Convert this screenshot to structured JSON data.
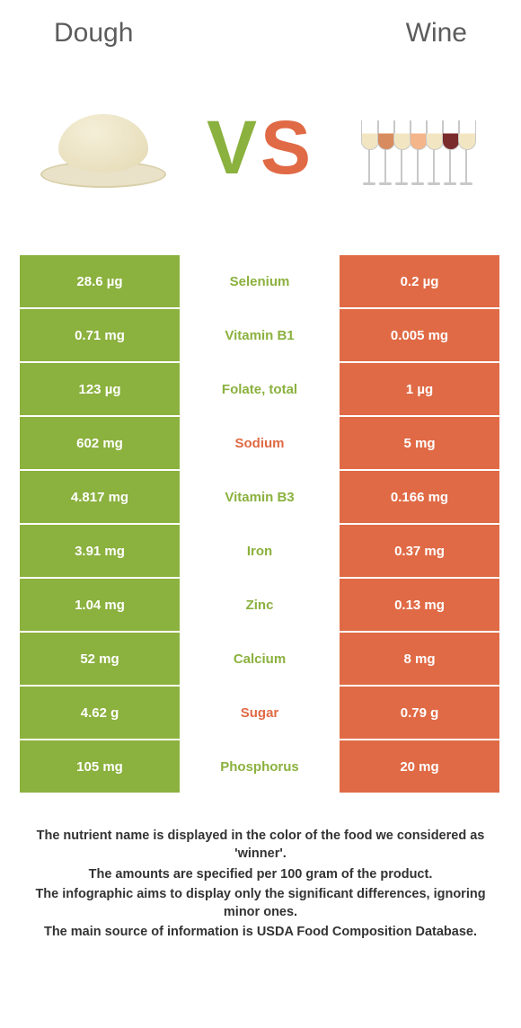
{
  "header": {
    "left": "Dough",
    "right": "Wine"
  },
  "vs": {
    "v": "V",
    "s": "S"
  },
  "colors": {
    "green": "#8bb13e",
    "orange": "#e06a45",
    "background": "#ffffff",
    "text": "#333333",
    "header_text": "#5c5c5c"
  },
  "wine_glass_colors": [
    "#f2e6c2",
    "#d88b5e",
    "#f2e6c2",
    "#f4b58a",
    "#f2e6c2",
    "#7a2b2b",
    "#f2e6c2"
  ],
  "table": {
    "left_bg": "green",
    "right_bg": "orange",
    "rows": [
      {
        "left": "28.6 µg",
        "name": "Selenium",
        "right": "0.2 µg",
        "winner": "green"
      },
      {
        "left": "0.71 mg",
        "name": "Vitamin B1",
        "right": "0.005 mg",
        "winner": "green"
      },
      {
        "left": "123 µg",
        "name": "Folate, total",
        "right": "1 µg",
        "winner": "green"
      },
      {
        "left": "602 mg",
        "name": "Sodium",
        "right": "5 mg",
        "winner": "orange"
      },
      {
        "left": "4.817 mg",
        "name": "Vitamin B3",
        "right": "0.166 mg",
        "winner": "green"
      },
      {
        "left": "3.91 mg",
        "name": "Iron",
        "right": "0.37 mg",
        "winner": "green"
      },
      {
        "left": "1.04 mg",
        "name": "Zinc",
        "right": "0.13 mg",
        "winner": "green"
      },
      {
        "left": "52 mg",
        "name": "Calcium",
        "right": "8 mg",
        "winner": "green"
      },
      {
        "left": "4.62 g",
        "name": "Sugar",
        "right": "0.79 g",
        "winner": "orange"
      },
      {
        "left": "105 mg",
        "name": "Phosphorus",
        "right": "20 mg",
        "winner": "green"
      }
    ]
  },
  "footer": {
    "lines": [
      "The nutrient name is displayed in the color of the food we considered as 'winner'.",
      "The amounts are specified per 100 gram of the product.",
      "The infographic aims to display only the significant differences, ignoring minor ones.",
      "The main source of information is USDA Food Composition Database."
    ]
  }
}
